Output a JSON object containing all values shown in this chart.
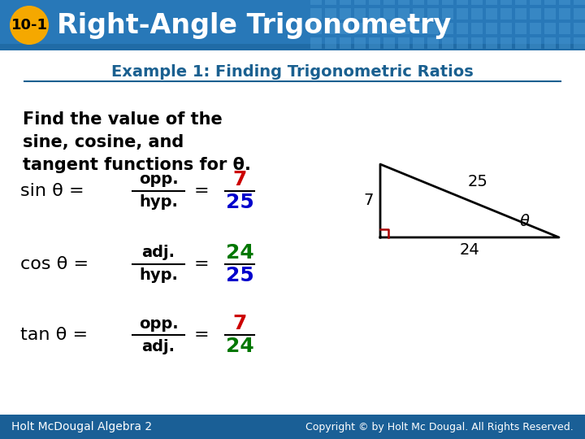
{
  "title_badge": "10-1",
  "title_text": "Right-Angle Trigonometry",
  "subtitle": "Example 1: Finding Trigonometric Ratios",
  "problem_text_lines": [
    "Find the value of the",
    "sine, cosine, and",
    "tangent functions for θ."
  ],
  "header_bg": "#2878b8",
  "header_bg2": "#1a5f96",
  "header_grid_color": "#4a9ad4",
  "badge_color": "#f5a800",
  "badge_text_color": "#000000",
  "title_text_color": "#ffffff",
  "subtitle_color": "#1a6090",
  "body_bg": "#ffffff",
  "triangle": {
    "right_angle_color": "#aa0000",
    "side_opp": "7",
    "side_adj": "24",
    "side_hyp": "25",
    "label_color": "#000000",
    "theta_color": "#000000"
  },
  "formulas": [
    {
      "prefix": "sin θ = ",
      "ratio_top": "opp.",
      "ratio_bot": "hyp.",
      "num": "7",
      "den": "25",
      "num_color": "#cc0000",
      "den_color": "#0000cc"
    },
    {
      "prefix": "cos θ = ",
      "ratio_top": "adj.",
      "ratio_bot": "hyp.",
      "num": "24",
      "den": "25",
      "num_color": "#007700",
      "den_color": "#0000cc"
    },
    {
      "prefix": "tan θ = ",
      "ratio_top": "opp.",
      "ratio_bot": "adj.",
      "num": "7",
      "den": "24",
      "num_color": "#cc0000",
      "den_color": "#007700"
    }
  ],
  "footer_text_left": "Holt McDougal Algebra 2",
  "footer_text_right": "Copyright © by Holt Mc Dougal. All Rights Reserved.",
  "footer_bg": "#1a5f96",
  "footer_text_color": "#ffffff"
}
